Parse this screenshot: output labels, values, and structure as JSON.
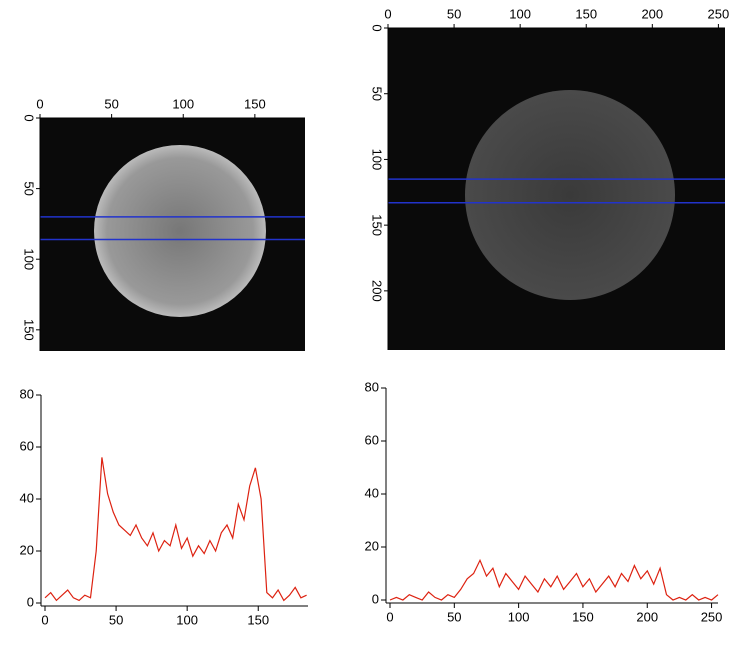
{
  "chart_data": [
    {
      "type": "image",
      "xlim": [
        0,
        185
      ],
      "ylim": [
        0,
        165
      ],
      "xticks": [
        0,
        50,
        100,
        150
      ],
      "yticks": [
        0,
        50,
        100,
        150
      ],
      "hlines": [
        70,
        86
      ],
      "line_color": "#2233cc"
    },
    {
      "type": "image",
      "xlim": [
        0,
        255
      ],
      "ylim": [
        0,
        245
      ],
      "xticks": [
        0,
        50,
        100,
        150,
        200,
        250
      ],
      "yticks": [
        0,
        50,
        100,
        150,
        200
      ],
      "hlines": [
        115,
        133
      ],
      "line_color": "#2233cc"
    },
    {
      "type": "line",
      "xlim": [
        0,
        185
      ],
      "ylim": [
        0,
        80
      ],
      "xticks": [
        0,
        50,
        100,
        150
      ],
      "yticks": [
        0,
        20,
        40,
        60,
        80
      ],
      "color": "#dd2211",
      "x": [
        0,
        4,
        8,
        12,
        16,
        20,
        24,
        28,
        32,
        36,
        40,
        44,
        48,
        52,
        56,
        60,
        64,
        68,
        72,
        76,
        80,
        84,
        88,
        92,
        96,
        100,
        104,
        108,
        112,
        116,
        120,
        124,
        128,
        132,
        136,
        140,
        144,
        148,
        152,
        156,
        160,
        164,
        168,
        172,
        176,
        180,
        184
      ],
      "values": [
        2,
        4,
        1,
        3,
        5,
        2,
        1,
        3,
        2,
        20,
        56,
        42,
        35,
        30,
        28,
        26,
        30,
        25,
        22,
        27,
        20,
        24,
        22,
        30,
        21,
        25,
        18,
        22,
        19,
        24,
        20,
        27,
        30,
        25,
        38,
        32,
        45,
        52,
        40,
        4,
        2,
        5,
        1,
        3,
        6,
        2,
        3
      ]
    },
    {
      "type": "line",
      "xlim": [
        0,
        255
      ],
      "ylim": [
        0,
        80
      ],
      "xticks": [
        0,
        50,
        100,
        150,
        200,
        250
      ],
      "yticks": [
        0,
        20,
        40,
        60,
        80
      ],
      "color": "#dd2211",
      "x": [
        0,
        5,
        10,
        15,
        20,
        25,
        30,
        35,
        40,
        45,
        50,
        55,
        60,
        65,
        70,
        75,
        80,
        85,
        90,
        95,
        100,
        105,
        110,
        115,
        120,
        125,
        130,
        135,
        140,
        145,
        150,
        155,
        160,
        165,
        170,
        175,
        180,
        185,
        190,
        195,
        200,
        205,
        210,
        215,
        220,
        225,
        230,
        235,
        240,
        245,
        250,
        255
      ],
      "values": [
        0,
        1,
        0,
        2,
        1,
        0,
        3,
        1,
        0,
        2,
        1,
        4,
        8,
        10,
        15,
        9,
        12,
        5,
        10,
        7,
        4,
        9,
        6,
        3,
        8,
        5,
        9,
        4,
        7,
        10,
        5,
        8,
        3,
        6,
        9,
        5,
        10,
        7,
        13,
        8,
        11,
        6,
        12,
        2,
        0,
        1,
        0,
        2,
        0,
        1,
        0,
        2
      ]
    }
  ]
}
